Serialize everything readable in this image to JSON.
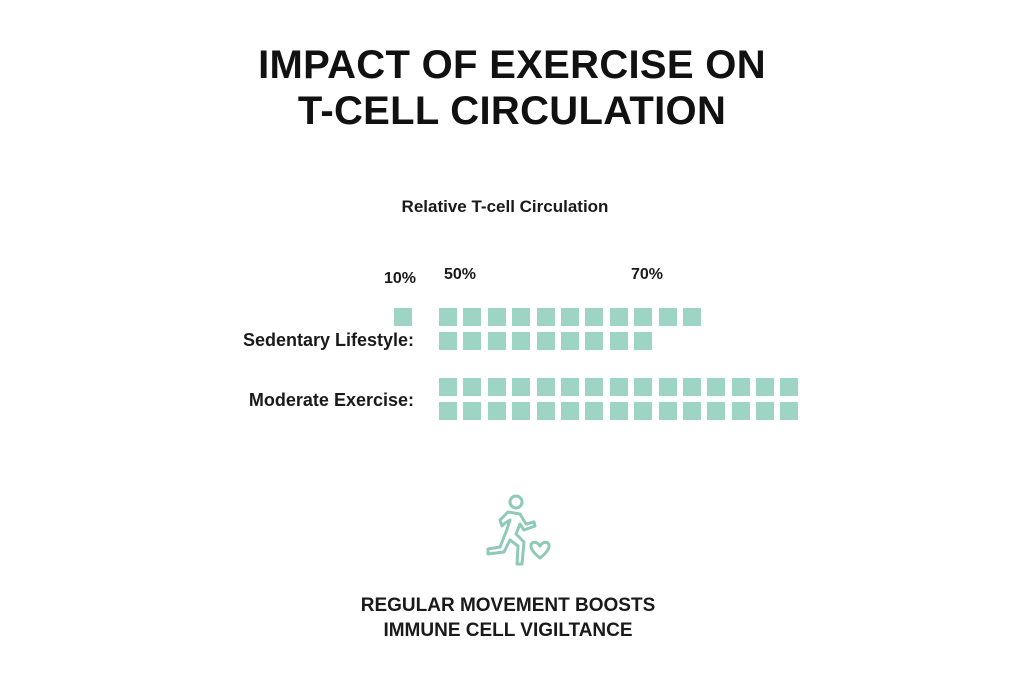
{
  "title_line1": "IMPACT OF EXERCISE ON",
  "title_line2": "T-CELL CIRCULATION",
  "subtitle": "Relative T-cell Circulation",
  "ticks": [
    "10%",
    "50%",
    "70%"
  ],
  "rows": [
    {
      "label": "Sedentary Lifestyle:",
      "top_row": 11,
      "bottom_row": 9
    },
    {
      "label": "Moderate Exercise:",
      "top_row": 15,
      "bottom_row": 15
    }
  ],
  "icon": "running-person-heart-icon",
  "footer_line1": "REGULAR MOVEMENT BOOSTS",
  "footer_line2": "IMMUNE CELL VIGILTANCE",
  "colors": {
    "square": "#9ed4c3",
    "icon_stroke": "#8fcab8",
    "text": "#111111"
  },
  "chart_data": {
    "type": "bar",
    "title": "Impact of Exercise on T-cell Circulation",
    "subtitle": "Relative T-cell Circulation",
    "categories": [
      "Sedentary Lifestyle",
      "Moderate Exercise"
    ],
    "values": [
      20,
      30
    ],
    "unit": "squares (pictogram units)",
    "tick_labels": [
      "10%",
      "50%",
      "70%"
    ],
    "annotations": [
      "Regular movement boosts immune cell vigiltance"
    ],
    "notes": "Pictogram: Sedentary = 11 + 9 squares (plus one separate square under 10%); Moderate = 15 + 15 squares"
  }
}
